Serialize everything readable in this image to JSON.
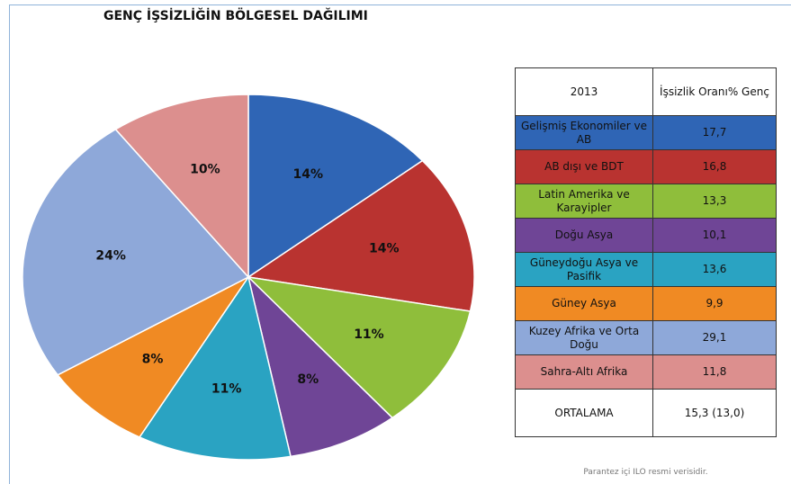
{
  "chart_data": {
    "type": "pie",
    "title": "GENÇ İŞSİZLİĞİN BÖLGESEL DAĞILIMI",
    "values": [
      14,
      14,
      11,
      8,
      11,
      8,
      24,
      10
    ],
    "value_labels": [
      "14%",
      "14%",
      "11%",
      "8%",
      "11%",
      "8%",
      "24%",
      "10%"
    ],
    "colors": [
      "#2f65b5",
      "#b93330",
      "#8fbe3b",
      "#6f4596",
      "#2aa3c2",
      "#f08a23",
      "#8ea8d9",
      "#dc8f8e"
    ]
  },
  "table": {
    "header": [
      "2013",
      "İşsizlik Oranı% Genç"
    ],
    "rows": [
      [
        "Gelişmiş Ekonomiler ve AB",
        "17,7"
      ],
      [
        "AB dışı ve BDT",
        "16,8"
      ],
      [
        "Latin Amerika ve Karayipler",
        "13,3"
      ],
      [
        "Doğu Asya",
        "10,1"
      ],
      [
        "Güneydoğu Asya ve Pasifik",
        "13,6"
      ],
      [
        "Güney Asya",
        "9,9"
      ],
      [
        "Kuzey Afrika ve Orta Doğu",
        "29,1"
      ],
      [
        "Sahra-Altı Afrika",
        "11,8"
      ]
    ],
    "footer": [
      "ORTALAMA",
      "15,3 (13,0)"
    ],
    "note": "Parantez içi ILO resmi verisidir."
  }
}
